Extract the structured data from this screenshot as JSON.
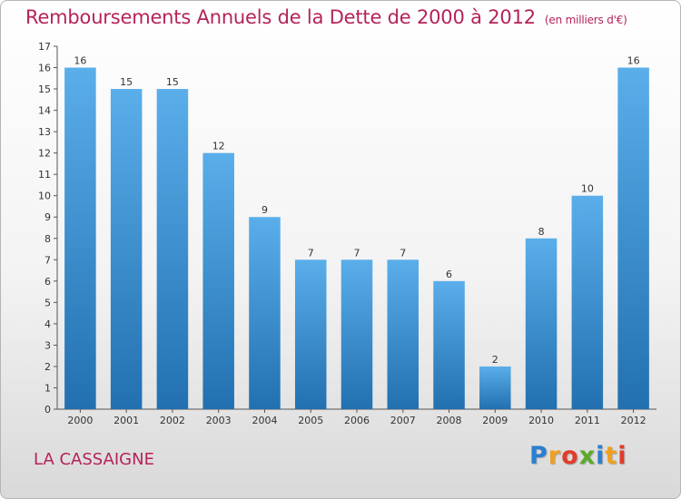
{
  "header": {
    "title": "Remboursements Annuels de la Dette de 2000 à 2012",
    "unit": "(en milliers d'€)"
  },
  "footer": {
    "city": "LA CASSAIGNE",
    "logo": {
      "letters": [
        {
          "char": "P",
          "color": "#2a7fd0"
        },
        {
          "char": "r",
          "color": "#f0a020"
        },
        {
          "char": "o",
          "color": "#e23c2a"
        },
        {
          "char": "x",
          "color": "#5aaa28"
        },
        {
          "char": "i",
          "color": "#2a7fd0"
        },
        {
          "char": "t",
          "color": "#f0a020"
        },
        {
          "char": "i",
          "color": "#e23c2a"
        }
      ]
    }
  },
  "chart_data": {
    "type": "bar",
    "title": "Remboursements Annuels de la Dette de 2000 à 2012",
    "unit": "(en milliers d'€)",
    "categories": [
      "2000",
      "2001",
      "2002",
      "2003",
      "2004",
      "2005",
      "2006",
      "2007",
      "2008",
      "2009",
      "2010",
      "2011",
      "2012"
    ],
    "values": [
      16,
      15,
      15,
      12,
      9,
      7,
      7,
      7,
      6,
      2,
      8,
      10,
      16
    ],
    "ylim": [
      0,
      17
    ],
    "yticks": [
      0,
      1,
      2,
      3,
      4,
      5,
      6,
      7,
      8,
      9,
      10,
      11,
      12,
      13,
      14,
      15,
      16,
      17
    ],
    "grid": false,
    "bar_color_top": "#5aaeea",
    "bar_color_bottom": "#2270b0"
  }
}
